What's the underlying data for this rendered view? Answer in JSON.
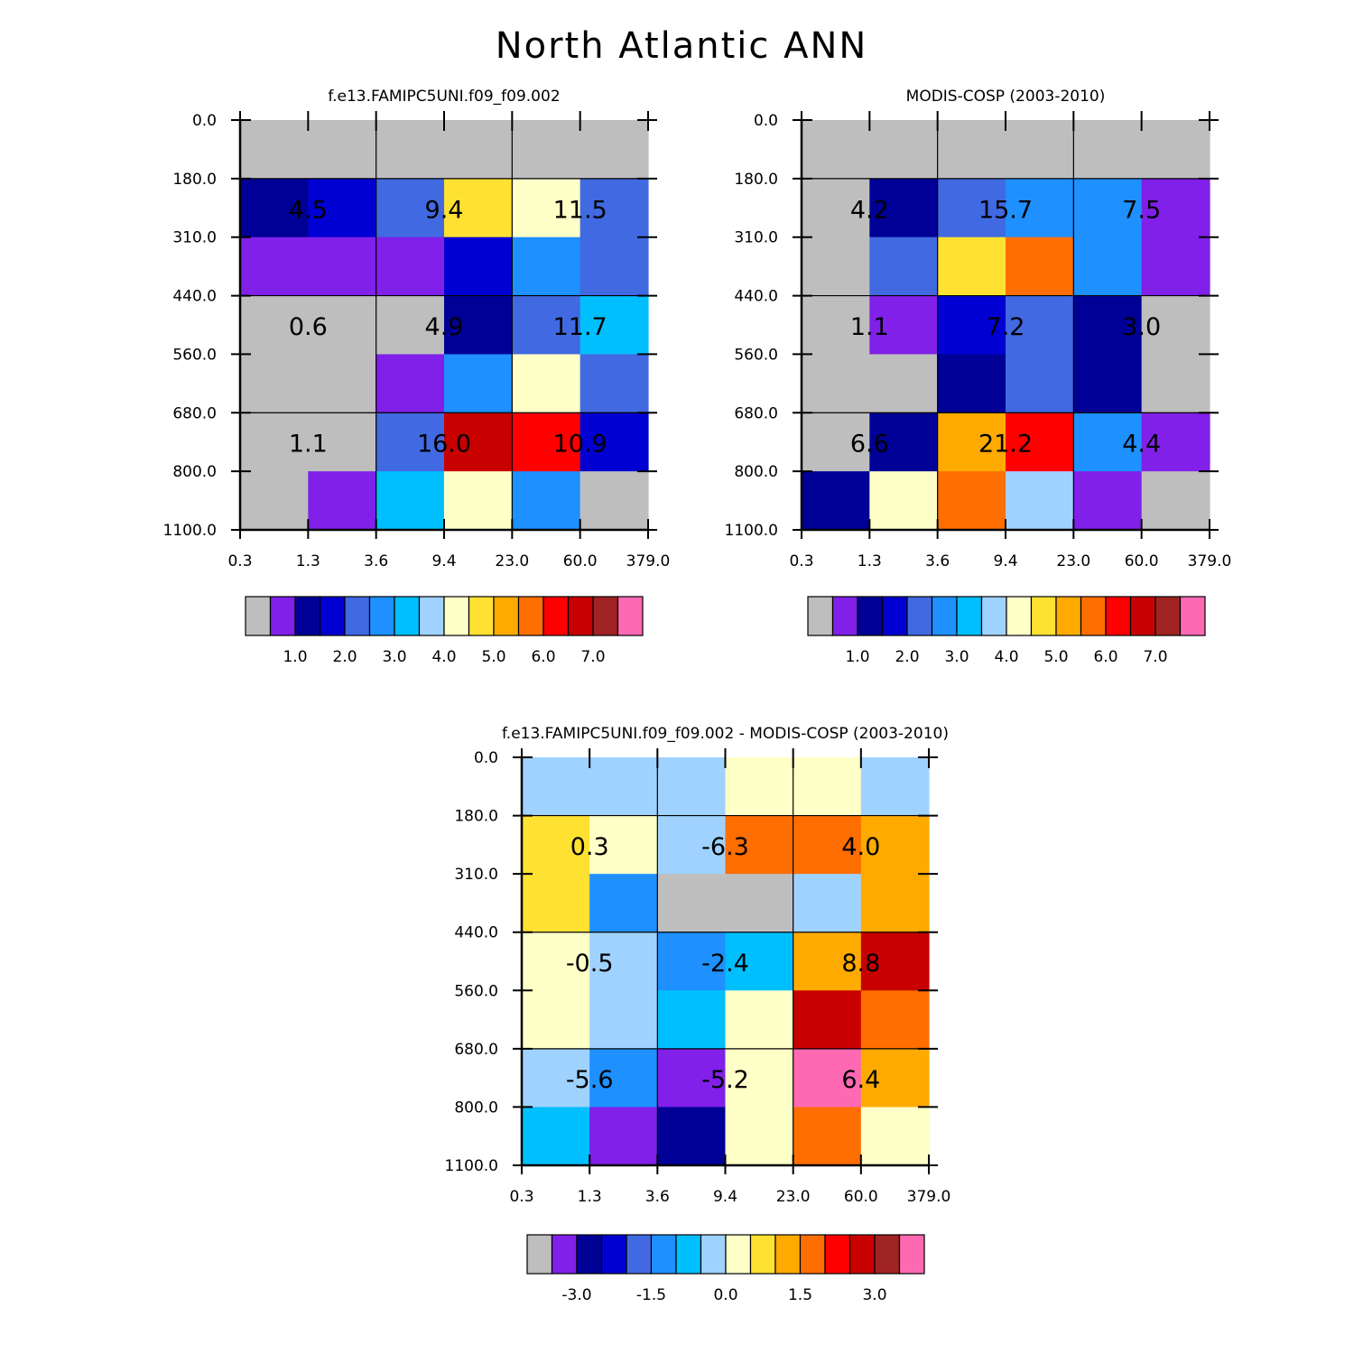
{
  "page": {
    "title": "North Atlantic ANN"
  },
  "palette": {
    "main": [
      "#bebebe",
      "#8020e8",
      "#000096",
      "#0000d2",
      "#4169e1",
      "#1e90ff",
      "#00bfff",
      "#a0d2ff",
      "#ffffc8",
      "#ffe132",
      "#ffaa00",
      "#ff6e00",
      "#ff0000",
      "#c80000",
      "#a02323",
      "#ff69b4"
    ],
    "diff": [
      "#bebebe",
      "#8020e8",
      "#000096",
      "#0000d2",
      "#4169e1",
      "#1e90ff",
      "#00bfff",
      "#a0d2ff",
      "#ffffc8",
      "#ffe132",
      "#ffaa00",
      "#ff6e00",
      "#ff0000",
      "#c80000",
      "#a02323",
      "#ff69b4"
    ]
  },
  "chart_data": [
    {
      "type": "heatmap",
      "title": "f.e13.FAMIPC5UNI.f09_f09.002",
      "x_ticks": [
        "0.3",
        "1.3",
        "3.6",
        "9.4",
        "23.0",
        "60.0",
        "379.0"
      ],
      "y_ticks": [
        "0.0",
        "180.0",
        "310.0",
        "440.0",
        "560.0",
        "680.0",
        "800.0",
        "1100.0"
      ],
      "cells": [
        [
          0,
          0,
          0,
          0,
          0,
          0
        ],
        [
          2,
          3,
          4,
          9,
          8,
          4
        ],
        [
          1,
          1,
          1,
          3,
          5,
          4
        ],
        [
          0,
          0,
          0,
          2,
          4,
          6
        ],
        [
          0,
          0,
          1,
          5,
          8,
          4
        ],
        [
          0,
          0,
          4,
          13,
          12,
          3
        ],
        [
          0,
          1,
          6,
          8,
          5,
          0
        ]
      ],
      "annotations": [
        {
          "row": 1,
          "col": 1,
          "text": "4.5"
        },
        {
          "row": 1,
          "col": 3,
          "text": "9.4"
        },
        {
          "row": 1,
          "col": 5,
          "text": "11.5"
        },
        {
          "row": 3,
          "col": 1,
          "text": "0.6"
        },
        {
          "row": 3,
          "col": 3,
          "text": "4.9"
        },
        {
          "row": 3,
          "col": 5,
          "text": "11.7"
        },
        {
          "row": 5,
          "col": 1,
          "text": "1.1"
        },
        {
          "row": 5,
          "col": 3,
          "text": "16.0"
        },
        {
          "row": 5,
          "col": 5,
          "text": "10.9"
        }
      ],
      "colorbar": {
        "palette": "main",
        "labels": [
          "1.0",
          "2.0",
          "3.0",
          "4.0",
          "5.0",
          "6.0",
          "7.0"
        ]
      }
    },
    {
      "type": "heatmap",
      "title": "MODIS-COSP (2003-2010)",
      "x_ticks": [
        "0.3",
        "1.3",
        "3.6",
        "9.4",
        "23.0",
        "60.0",
        "379.0"
      ],
      "y_ticks": [
        "0.0",
        "180.0",
        "310.0",
        "440.0",
        "560.0",
        "680.0",
        "800.0",
        "1100.0"
      ],
      "cells": [
        [
          0,
          0,
          0,
          0,
          0,
          0
        ],
        [
          0,
          2,
          4,
          5,
          5,
          1
        ],
        [
          0,
          4,
          9,
          11,
          5,
          1
        ],
        [
          0,
          1,
          3,
          4,
          2,
          0
        ],
        [
          0,
          0,
          2,
          4,
          2,
          0
        ],
        [
          0,
          2,
          10,
          12,
          5,
          1
        ],
        [
          2,
          8,
          11,
          7,
          1,
          0
        ]
      ],
      "annotations": [
        {
          "row": 1,
          "col": 1,
          "text": "4.2"
        },
        {
          "row": 1,
          "col": 3,
          "text": "15.7"
        },
        {
          "row": 1,
          "col": 5,
          "text": "7.5"
        },
        {
          "row": 3,
          "col": 1,
          "text": "1.1"
        },
        {
          "row": 3,
          "col": 3,
          "text": "7.2"
        },
        {
          "row": 3,
          "col": 5,
          "text": "3.0"
        },
        {
          "row": 5,
          "col": 1,
          "text": "6.6"
        },
        {
          "row": 5,
          "col": 3,
          "text": "21.2"
        },
        {
          "row": 5,
          "col": 5,
          "text": "4.4"
        }
      ],
      "colorbar": {
        "palette": "main",
        "labels": [
          "1.0",
          "2.0",
          "3.0",
          "4.0",
          "5.0",
          "6.0",
          "7.0"
        ]
      }
    },
    {
      "type": "heatmap",
      "title": "f.e13.FAMIPC5UNI.f09_f09.002 - MODIS-COSP (2003-2010)",
      "x_ticks": [
        "0.3",
        "1.3",
        "3.6",
        "9.4",
        "23.0",
        "60.0",
        "379.0"
      ],
      "y_ticks": [
        "0.0",
        "180.0",
        "310.0",
        "440.0",
        "560.0",
        "680.0",
        "800.0",
        "1100.0"
      ],
      "cells": [
        [
          7,
          7,
          7,
          8,
          8,
          7
        ],
        [
          9,
          8,
          7,
          11,
          11,
          10
        ],
        [
          9,
          5,
          0,
          0,
          7,
          10
        ],
        [
          8,
          7,
          5,
          6,
          10,
          13
        ],
        [
          8,
          7,
          6,
          8,
          13,
          11
        ],
        [
          7,
          5,
          1,
          8,
          15,
          10
        ],
        [
          6,
          1,
          2,
          8,
          11,
          8
        ]
      ],
      "annotations": [
        {
          "row": 1,
          "col": 1,
          "text": "0.3"
        },
        {
          "row": 1,
          "col": 3,
          "text": "-6.3"
        },
        {
          "row": 1,
          "col": 5,
          "text": "4.0"
        },
        {
          "row": 3,
          "col": 1,
          "text": "-0.5"
        },
        {
          "row": 3,
          "col": 3,
          "text": "-2.4"
        },
        {
          "row": 3,
          "col": 5,
          "text": "8.8"
        },
        {
          "row": 5,
          "col": 1,
          "text": "-5.6"
        },
        {
          "row": 5,
          "col": 3,
          "text": "-5.2"
        },
        {
          "row": 5,
          "col": 5,
          "text": "6.4"
        }
      ],
      "colorbar": {
        "palette": "diff",
        "labels": [
          "-3.0",
          "-1.5",
          "0.0",
          "1.5",
          "3.0"
        ]
      }
    }
  ]
}
